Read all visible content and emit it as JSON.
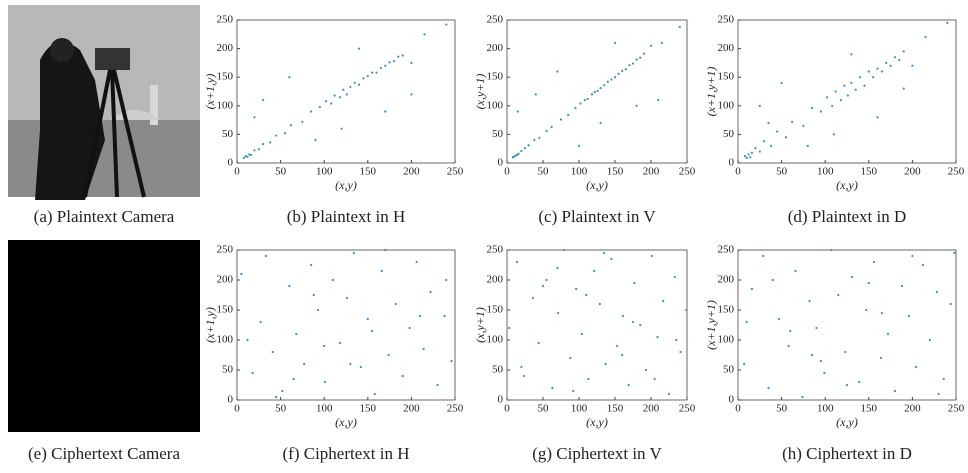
{
  "images": [
    {
      "caption": "(a) Plaintext Camera"
    },
    {
      "caption": "(e) Ciphertext Camera"
    }
  ],
  "chart_data": [
    {
      "type": "scatter",
      "caption": "(b) Plaintext in H",
      "xlabel": "(x,y)",
      "ylabel": "(x+1,y)",
      "color": "#3a8fc4",
      "x": [
        8,
        10,
        12,
        14,
        16,
        20,
        25,
        30,
        38,
        45,
        55,
        62,
        75,
        85,
        95,
        102,
        108,
        112,
        118,
        122,
        126,
        130,
        135,
        140,
        145,
        150,
        155,
        160,
        165,
        170,
        175,
        180,
        185,
        190,
        200,
        215,
        240,
        60,
        120,
        30,
        170,
        90,
        200,
        140,
        20
      ],
      "y": [
        9,
        12,
        11,
        15,
        14,
        22,
        24,
        33,
        36,
        48,
        52,
        66,
        72,
        90,
        98,
        108,
        104,
        118,
        115,
        128,
        120,
        133,
        140,
        137,
        148,
        152,
        158,
        158,
        166,
        170,
        176,
        178,
        186,
        188,
        175,
        225,
        242,
        150,
        60,
        110,
        90,
        40,
        120,
        200,
        80
      ],
      "xlim": [
        0,
        250
      ],
      "ylim": [
        0,
        250
      ],
      "xticks": [
        0,
        50,
        100,
        150,
        200,
        250
      ],
      "yticks": [
        0,
        50,
        100,
        150,
        200,
        250
      ]
    },
    {
      "type": "scatter",
      "caption": "(c) Plaintext in V",
      "xlabel": "(x,y)",
      "ylabel": "(x,y+1)",
      "color": "#3a8fc4",
      "x": [
        8,
        10,
        12,
        14,
        16,
        20,
        25,
        30,
        38,
        45,
        55,
        62,
        75,
        85,
        95,
        102,
        108,
        112,
        118,
        122,
        126,
        130,
        135,
        140,
        145,
        150,
        155,
        160,
        165,
        170,
        175,
        180,
        185,
        190,
        200,
        215,
        240,
        70,
        130,
        40,
        180,
        100,
        210,
        150,
        15
      ],
      "y": [
        10,
        11,
        13,
        14,
        16,
        21,
        26,
        31,
        40,
        44,
        56,
        63,
        76,
        84,
        96,
        104,
        110,
        112,
        120,
        124,
        126,
        131,
        136,
        142,
        146,
        150,
        156,
        161,
        164,
        171,
        174,
        181,
        184,
        191,
        205,
        210,
        238,
        160,
        70,
        120,
        100,
        30,
        110,
        210,
        90
      ],
      "xlim": [
        0,
        250
      ],
      "ylim": [
        0,
        250
      ],
      "xticks": [
        0,
        50,
        100,
        150,
        200,
        250
      ],
      "yticks": [
        0,
        50,
        100,
        150,
        200,
        250
      ]
    },
    {
      "type": "scatter",
      "caption": "(d) Plaintext in D",
      "xlabel": "(x,y)",
      "ylabel": "(x+1,y+1)",
      "color": "#3a8fc4",
      "x": [
        8,
        10,
        12,
        14,
        16,
        20,
        25,
        30,
        38,
        45,
        55,
        62,
        75,
        85,
        95,
        102,
        108,
        112,
        118,
        122,
        126,
        130,
        135,
        140,
        145,
        150,
        155,
        160,
        165,
        170,
        175,
        180,
        185,
        190,
        200,
        215,
        240,
        50,
        110,
        25,
        160,
        80,
        190,
        130,
        35
      ],
      "y": [
        12,
        9,
        15,
        10,
        18,
        26,
        20,
        38,
        30,
        55,
        45,
        72,
        65,
        96,
        90,
        115,
        100,
        125,
        110,
        135,
        118,
        140,
        128,
        150,
        135,
        160,
        150,
        165,
        160,
        175,
        170,
        185,
        180,
        195,
        170,
        220,
        245,
        140,
        50,
        100,
        80,
        30,
        130,
        190,
        70
      ],
      "xlim": [
        0,
        250
      ],
      "ylim": [
        0,
        250
      ],
      "xticks": [
        0,
        50,
        100,
        150,
        200,
        250
      ],
      "yticks": [
        0,
        50,
        100,
        150,
        200,
        250
      ]
    },
    {
      "type": "scatter",
      "caption": "(f) Ciphertext in H",
      "xlabel": "(x,y)",
      "ylabel": "(x+1,y)",
      "color": "#3a8fc4",
      "x": [
        5,
        18,
        27,
        33,
        41,
        52,
        60,
        68,
        77,
        85,
        93,
        101,
        110,
        118,
        126,
        134,
        142,
        150,
        158,
        166,
        174,
        182,
        190,
        198,
        206,
        214,
        222,
        230,
        238,
        246,
        12,
        45,
        88,
        130,
        170,
        210,
        240,
        65,
        155,
        100
      ],
      "y": [
        210,
        45,
        130,
        240,
        80,
        15,
        190,
        110,
        60,
        225,
        150,
        30,
        200,
        95,
        170,
        245,
        55,
        135,
        10,
        215,
        75,
        160,
        40,
        120,
        230,
        85,
        180,
        25,
        140,
        65,
        100,
        5,
        175,
        60,
        250,
        140,
        200,
        35,
        115,
        90
      ],
      "xlim": [
        0,
        250
      ],
      "ylim": [
        0,
        250
      ],
      "xticks": [
        0,
        50,
        100,
        150,
        200,
        250
      ],
      "yticks": [
        0,
        50,
        100,
        150,
        200,
        250
      ]
    },
    {
      "type": "scatter",
      "caption": "(g) Ciphertext in V",
      "xlabel": "(x,y)",
      "ylabel": "(x,y+1)",
      "color": "#3a8fc4",
      "x": [
        3,
        14,
        24,
        36,
        44,
        55,
        63,
        71,
        79,
        88,
        96,
        104,
        113,
        121,
        129,
        137,
        145,
        153,
        161,
        169,
        177,
        185,
        193,
        201,
        209,
        217,
        225,
        233,
        241,
        249,
        20,
        50,
        92,
        135,
        175,
        205,
        235,
        70,
        160,
        110
      ],
      "y": [
        120,
        230,
        40,
        170,
        95,
        200,
        20,
        145,
        250,
        70,
        185,
        110,
        35,
        215,
        160,
        60,
        235,
        90,
        140,
        25,
        195,
        125,
        50,
        240,
        105,
        165,
        10,
        205,
        80,
        150,
        55,
        190,
        15,
        245,
        130,
        35,
        100,
        220,
        75,
        175
      ],
      "xlim": [
        0,
        250
      ],
      "ylim": [
        0,
        250
      ],
      "xticks": [
        0,
        50,
        100,
        150,
        200,
        250
      ],
      "yticks": [
        0,
        50,
        100,
        150,
        200,
        250
      ]
    },
    {
      "type": "scatter",
      "caption": "(h) Ciphertext in D",
      "xlabel": "(x,y)",
      "ylabel": "(x+1,y+1)",
      "color": "#3a8fc4",
      "x": [
        7,
        16,
        29,
        35,
        47,
        58,
        66,
        74,
        82,
        90,
        99,
        107,
        115,
        123,
        131,
        139,
        147,
        156,
        164,
        172,
        180,
        188,
        196,
        204,
        212,
        220,
        228,
        236,
        244,
        248,
        10,
        40,
        85,
        125,
        165,
        200,
        230,
        60,
        150,
        95
      ],
      "y": [
        60,
        185,
        240,
        20,
        135,
        90,
        215,
        5,
        165,
        120,
        45,
        250,
        175,
        80,
        205,
        30,
        150,
        230,
        70,
        110,
        15,
        190,
        140,
        55,
        225,
        100,
        180,
        35,
        160,
        245,
        130,
        200,
        75,
        25,
        145,
        240,
        10,
        115,
        195,
        65
      ],
      "xlim": [
        0,
        250
      ],
      "ylim": [
        0,
        250
      ],
      "xticks": [
        0,
        50,
        100,
        150,
        200,
        250
      ],
      "yticks": [
        0,
        50,
        100,
        150,
        200,
        250
      ]
    }
  ]
}
